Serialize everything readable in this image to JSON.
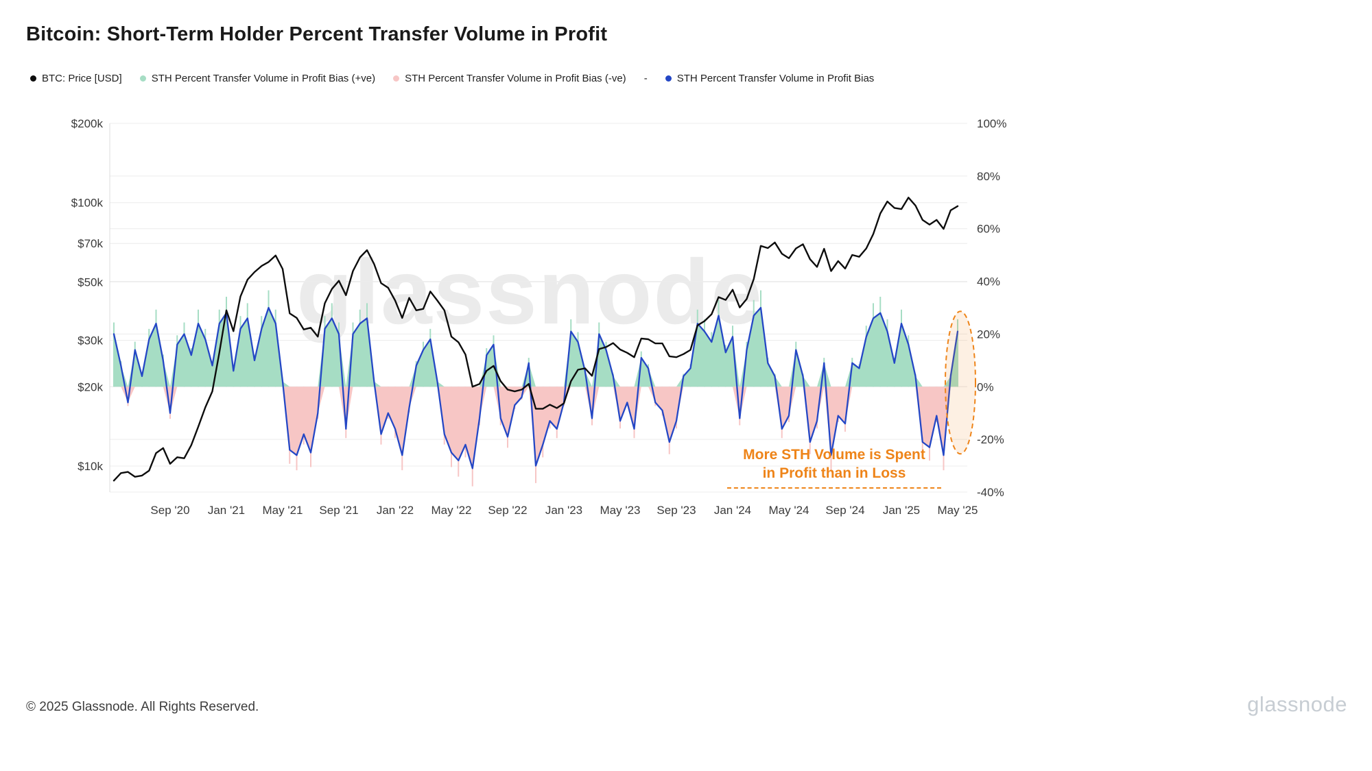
{
  "page": {
    "title": "Bitcoin: Short-Term Holder Percent Transfer Volume in Profit",
    "watermark": "glassnode",
    "footer_copyright": "© 2025 Glassnode. All Rights Reserved.",
    "footer_brand": "glassnode"
  },
  "legend": {
    "items": [
      {
        "label": "BTC: Price [USD]",
        "marker": "dot",
        "color": "#0d0d0d"
      },
      {
        "label": "STH Percent Transfer Volume in Profit Bias (+ve)",
        "marker": "dot",
        "color": "#a6ddc4"
      },
      {
        "label": "STH Percent Transfer Volume in Profit Bias (-ve)",
        "marker": "dot",
        "color": "#f7c6c5"
      },
      {
        "label": "-",
        "marker": "none",
        "color": ""
      },
      {
        "label": "STH Percent Transfer Volume in Profit Bias",
        "marker": "dot",
        "color": "#2447c5"
      }
    ]
  },
  "annotation": {
    "line1": "More STH Volume is Spent",
    "line2": "in Profit than in Loss",
    "color": "#ee8419"
  },
  "chart_data": {
    "type": "line",
    "title": "Bitcoin: Short-Term Holder Percent Transfer Volume in Profit",
    "x_start": "2020-05",
    "x_step_months": 0.5,
    "x_tick_labels": [
      "Sep '20",
      "Jan '21",
      "May '21",
      "Sep '21",
      "Jan '22",
      "May '22",
      "Sep '22",
      "Jan '23",
      "May '23",
      "Sep '23",
      "Jan '24",
      "May '24",
      "Sep '24",
      "Jan '25",
      "May '25"
    ],
    "x_tick_month_offsets": [
      4,
      8,
      12,
      16,
      20,
      24,
      28,
      32,
      36,
      40,
      44,
      48,
      52,
      56,
      60
    ],
    "left_axis": {
      "label": "BTC Price [USD]",
      "scale": "log",
      "ticks": [
        "$200k",
        "$100k",
        "$70k",
        "$50k",
        "$30k",
        "$20k",
        "$10k"
      ],
      "tick_values_usd_k": [
        200,
        100,
        70,
        50,
        30,
        20,
        10
      ]
    },
    "right_axis": {
      "label": "STH Percent Transfer Volume in Profit Bias",
      "scale": "linear",
      "ticks": [
        "100%",
        "80%",
        "60%",
        "40%",
        "20%",
        "0%",
        "-20%",
        "-40%"
      ],
      "tick_values_pct": [
        100,
        80,
        60,
        40,
        20,
        0,
        -20,
        -40
      ],
      "range_pct": [
        -40,
        100
      ]
    },
    "grid": true,
    "legend_position": "top",
    "series": [
      {
        "name": "BTC: Price [USD]",
        "color": "#0d0d0d",
        "unit": "USD thousands",
        "values_usd_k": [
          8.8,
          9.4,
          9.5,
          9.1,
          9.2,
          9.6,
          11.2,
          11.7,
          10.2,
          10.8,
          10.7,
          12.0,
          14.1,
          16.7,
          19.2,
          27.0,
          39.0,
          32.5,
          44.0,
          51.0,
          54.5,
          57.5,
          59.5,
          63.0,
          56.0,
          38.0,
          36.5,
          33.0,
          33.5,
          31.0,
          41.5,
          47.0,
          50.5,
          44.5,
          55.0,
          62.0,
          66.0,
          58.5,
          49.5,
          47.5,
          42.5,
          36.5,
          43.5,
          39.0,
          39.5,
          46.0,
          42.5,
          39.0,
          31.0,
          29.5,
          26.5,
          20.0,
          20.5,
          23.0,
          24.0,
          21.0,
          19.5,
          19.2,
          19.5,
          20.5,
          16.5,
          16.5,
          17.1,
          16.6,
          17.3,
          21.0,
          23.2,
          23.5,
          22.0,
          27.8,
          28.3,
          29.3,
          27.7,
          26.9,
          25.9,
          30.5,
          30.3,
          29.2,
          29.2,
          26.1,
          25.9,
          26.6,
          27.6,
          34.2,
          35.5,
          37.7,
          43.8,
          42.7,
          46.7,
          40.0,
          43.1,
          51.3,
          68.5,
          67.2,
          70.6,
          64.0,
          61.5,
          67.0,
          69.5,
          61.0,
          57.0,
          66.8,
          55.0,
          60.0,
          56.2,
          63.3,
          62.3,
          67.0,
          76.0,
          91.0,
          101.0,
          95.5,
          94.5,
          104.5,
          97.5,
          86.0,
          82.5,
          86.0,
          79.5,
          93.5,
          97.0
        ]
      },
      {
        "name": "STH Percent Transfer Volume in Profit Bias",
        "color": "#2447c5",
        "unit": "%",
        "fill_positive": "#a6ddc4",
        "fill_negative": "#f7c6c5",
        "values_pct": [
          20,
          8,
          -6,
          14,
          4,
          18,
          24,
          10,
          -10,
          16,
          20,
          12,
          24,
          18,
          8,
          24,
          28,
          6,
          22,
          26,
          10,
          22,
          30,
          24,
          2,
          -24,
          -26,
          -18,
          -25,
          -10,
          22,
          26,
          20,
          -16,
          20,
          24,
          26,
          2,
          -18,
          -10,
          -16,
          -26,
          -8,
          8,
          14,
          18,
          2,
          -18,
          -25,
          -28,
          -22,
          -31,
          -12,
          12,
          16,
          -12,
          -19,
          -7,
          -4,
          9,
          -30,
          -22,
          -13,
          -16,
          -6,
          21,
          17,
          6,
          -12,
          20,
          14,
          4,
          -13,
          -6,
          -16,
          11,
          7,
          -6,
          -9,
          -21,
          -13,
          4,
          7,
          24,
          21,
          17,
          27,
          13,
          19,
          -12,
          14,
          27,
          30,
          9,
          4,
          -16,
          -11,
          14,
          4,
          -21,
          -13,
          9,
          -26,
          -11,
          -14,
          9,
          7,
          19,
          26,
          28,
          21,
          9,
          24,
          16,
          4,
          -21,
          -23,
          -11,
          -26,
          4,
          21
        ]
      }
    ],
    "highlight": {
      "type": "dashed-ellipse",
      "note": "More STH Volume is Spent in Profit than in Loss",
      "color": "#ee8419",
      "at_x_label": "May '25"
    }
  }
}
